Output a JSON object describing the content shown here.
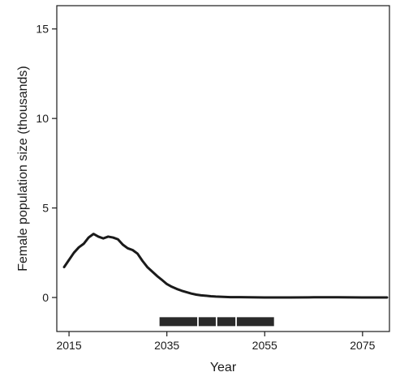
{
  "chart_data": {
    "type": "line",
    "xlabel": "Year",
    "ylabel": "Female population size (thousands)",
    "xlim": [
      2012.5,
      2080.5
    ],
    "ylim": [
      -1.9,
      16.3
    ],
    "x_ticks": [
      2015,
      2035,
      2055,
      2075
    ],
    "x_tick_labels": [
      "2015",
      "2035",
      "2055",
      "2075"
    ],
    "y_ticks": [
      0,
      5,
      10,
      15
    ],
    "y_tick_labels": [
      "0",
      "5",
      "10",
      "15"
    ],
    "grid": false,
    "legend": "none",
    "series": [
      {
        "color": "#1a1a1a",
        "x": [
          2014,
          2015,
          2016,
          2017,
          2018,
          2019,
          2020,
          2021,
          2022,
          2023,
          2024,
          2025,
          2026,
          2027,
          2028,
          2029,
          2030,
          2031,
          2032,
          2033,
          2034,
          2035,
          2036,
          2037,
          2038,
          2039,
          2040,
          2041,
          2042,
          2043,
          2044,
          2045,
          2046,
          2047,
          2048,
          2050,
          2055,
          2060,
          2065,
          2070,
          2075,
          2080
        ],
        "y": [
          1.7,
          2.1,
          2.5,
          2.8,
          3.0,
          3.35,
          3.55,
          3.4,
          3.3,
          3.4,
          3.35,
          3.25,
          2.95,
          2.75,
          2.65,
          2.45,
          2.05,
          1.7,
          1.45,
          1.2,
          0.98,
          0.75,
          0.6,
          0.48,
          0.38,
          0.3,
          0.22,
          0.16,
          0.12,
          0.1,
          0.07,
          0.05,
          0.04,
          0.03,
          0.02,
          0.02,
          0.0,
          0.0,
          0.01,
          0.01,
          0.0,
          0.0
        ]
      }
    ],
    "bars": {
      "y": -1.35,
      "color": "#2a2a2a",
      "segments": [
        [
          2033.5,
          2041.2
        ],
        [
          2041.5,
          2045.0
        ],
        [
          2045.3,
          2049.0
        ],
        [
          2049.3,
          2056.9
        ]
      ]
    }
  }
}
